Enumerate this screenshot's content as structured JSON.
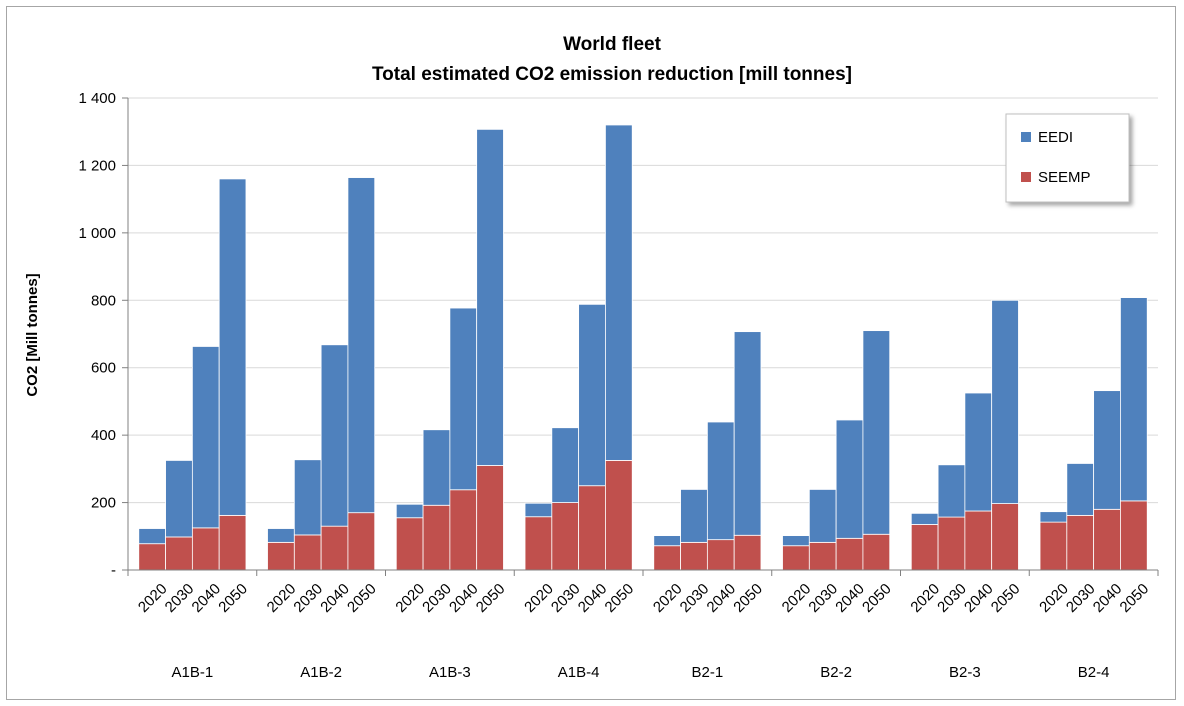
{
  "chart_data": {
    "type": "bar",
    "stacked": true,
    "title": "World fleet",
    "subtitle": "Total estimated CO2 emission reduction [mill tonnes]",
    "ylabel": "CO2  [Mill tonnes]",
    "xlabel": "",
    "ylim": [
      0,
      1400
    ],
    "yticks": [
      0,
      200,
      400,
      600,
      800,
      1000,
      1200,
      1400
    ],
    "ytick_labels": [
      "-",
      "200",
      "400",
      "600",
      "800",
      "1 000",
      "1 200",
      "1 400"
    ],
    "grid": "horizontal",
    "legend_position": "top-right",
    "groups": [
      "A1B-1",
      "A1B-2",
      "A1B-3",
      "A1B-4",
      "B2-1",
      "B2-2",
      "B2-3",
      "B2-4"
    ],
    "years": [
      "2020",
      "2030",
      "2040",
      "2050"
    ],
    "series": [
      {
        "name": "SEEMP",
        "color": "#c0504d",
        "values": [
          [
            78,
            98,
            125,
            162
          ],
          [
            82,
            104,
            130,
            170
          ],
          [
            155,
            192,
            238,
            310
          ],
          [
            158,
            200,
            250,
            325
          ],
          [
            72,
            82,
            90,
            103
          ],
          [
            72,
            82,
            94,
            106
          ],
          [
            135,
            157,
            175,
            197
          ],
          [
            142,
            162,
            180,
            205
          ]
        ]
      },
      {
        "name": "EEDI",
        "color": "#4f81bd",
        "values": [
          [
            45,
            227,
            538,
            998
          ],
          [
            41,
            223,
            538,
            994
          ],
          [
            40,
            224,
            539,
            997
          ],
          [
            40,
            222,
            538,
            995
          ],
          [
            30,
            157,
            349,
            604
          ],
          [
            30,
            157,
            351,
            604
          ],
          [
            33,
            155,
            350,
            603
          ],
          [
            31,
            154,
            352,
            603
          ]
        ]
      }
    ]
  }
}
